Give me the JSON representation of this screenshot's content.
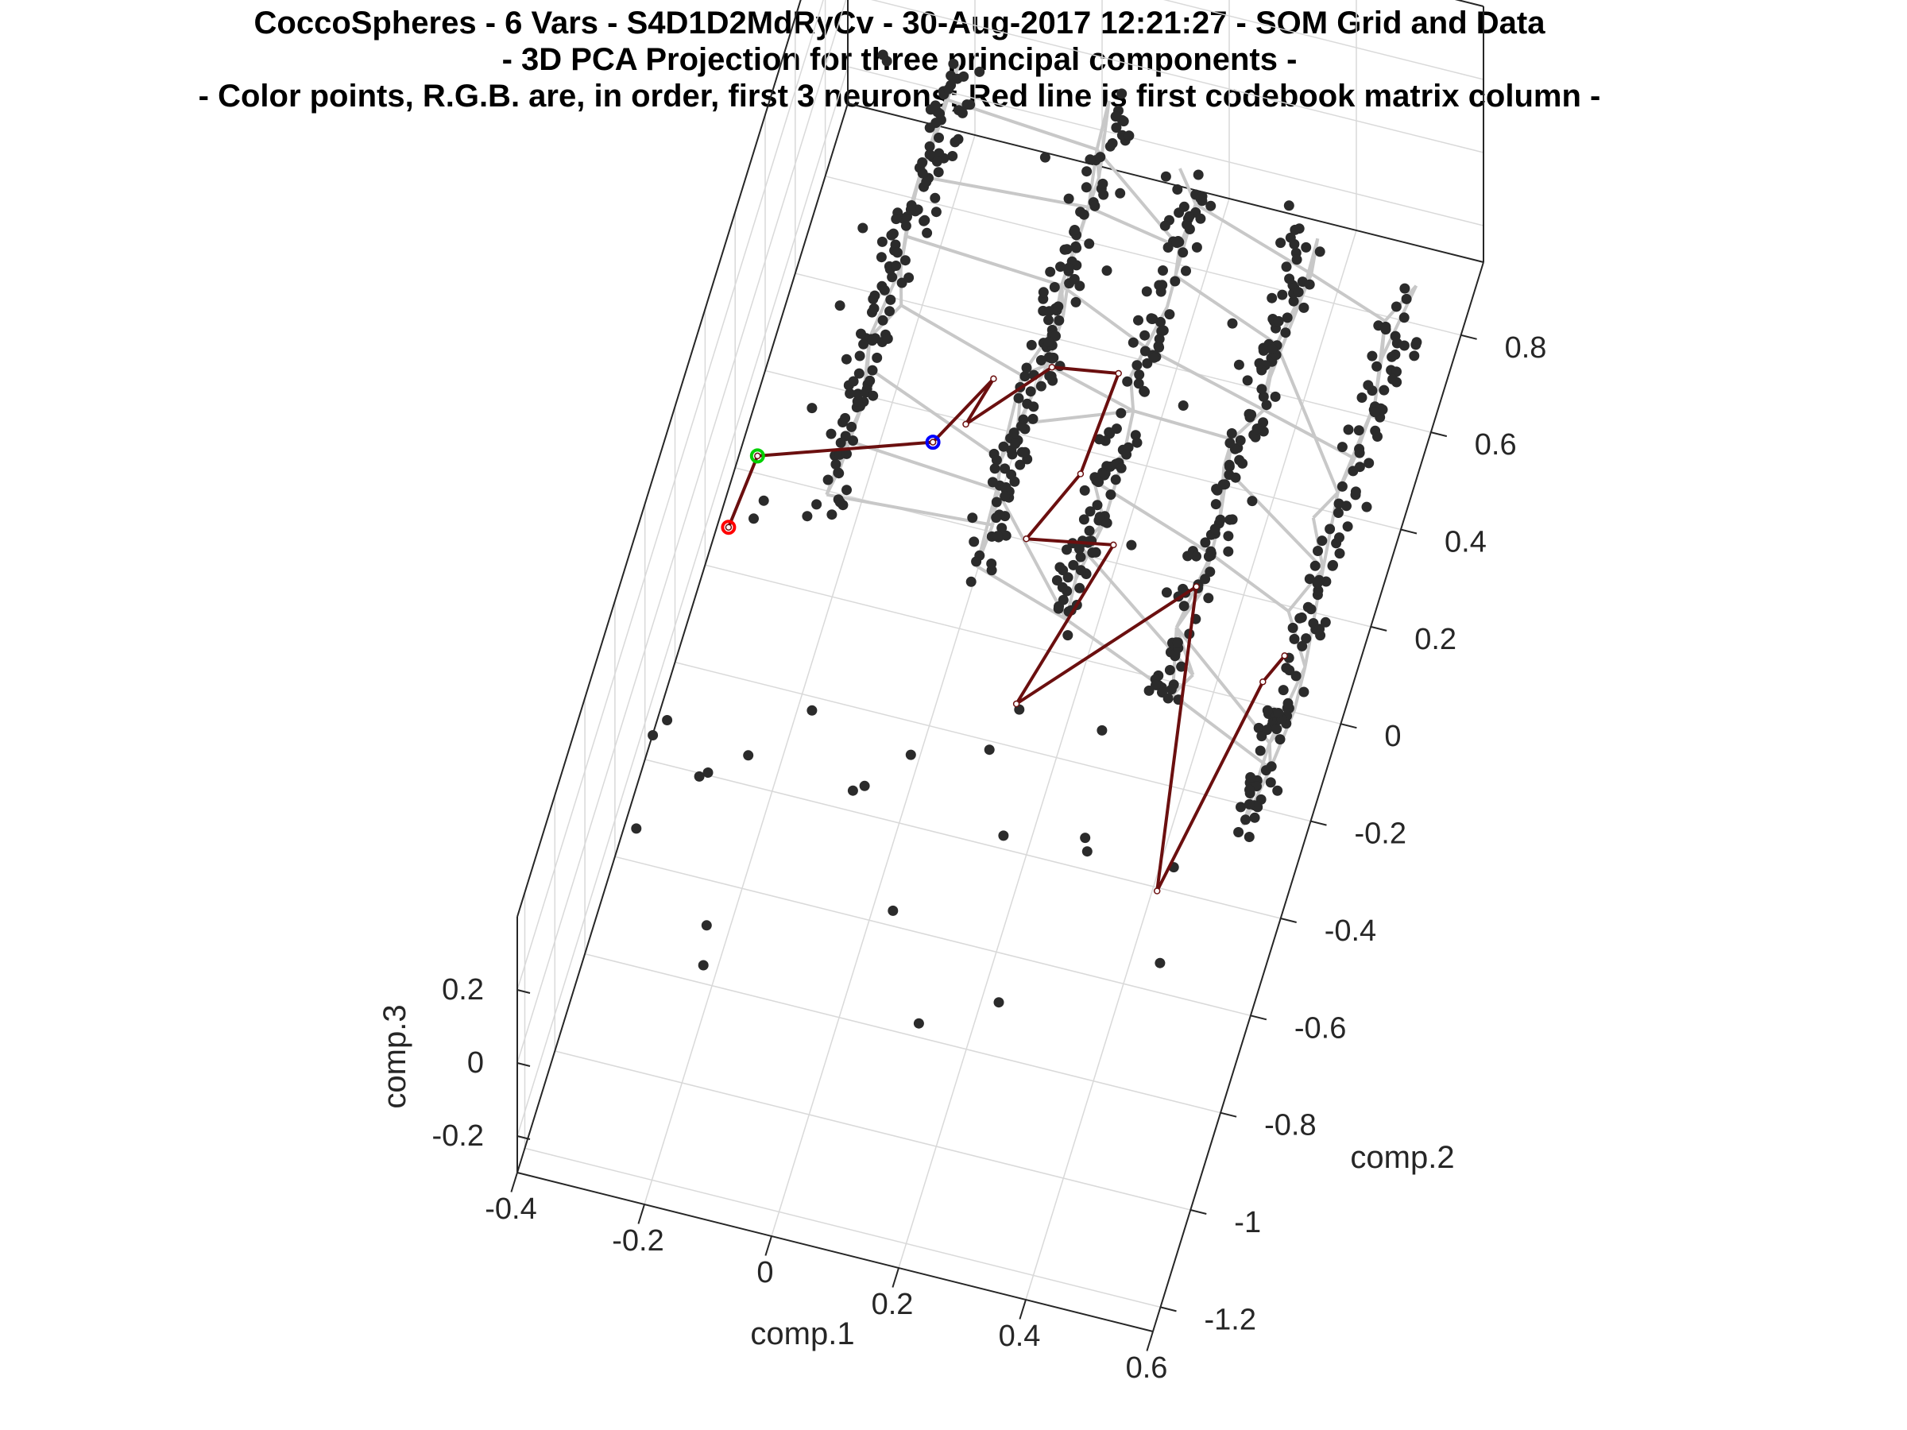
{
  "figure": {
    "title_lines": [
      "CoccoSpheres - 6 Vars - S4D1D2MdRyCv - 30-Aug-2017 12:21:27 - SOM Grid and Data",
      "- 3D PCA Projection for three principal components -",
      "- Color points, R.G.B. are, in order, first 3 neurons; Red line is first codebook matrix column -"
    ]
  },
  "chart_data": {
    "type": "scatter",
    "projection": "3d",
    "title": "CoccoSpheres - 6 Vars - S4D1D2MdRyCv - 30-Aug-2017 12:21:27 - SOM Grid and Data - 3D PCA Projection for three principal components - - Color points, R.G.B. are, in order, first 3 neurons; Red line is first codebook matrix column -",
    "xlabel": "comp.1",
    "ylabel": "comp.2",
    "zlabel": "comp.3",
    "xlim": [
      -0.4,
      0.6
    ],
    "ylim": [
      -1.25,
      0.95
    ],
    "zlim": [
      -0.3,
      0.4
    ],
    "xticks": [
      "-0.4",
      "-0.2",
      "0",
      "0.2",
      "0.4",
      "0.6"
    ],
    "yticks": [
      "-1.2",
      "-1",
      "-0.8",
      "-0.6",
      "-0.4",
      "-0.2",
      "0",
      "0.2",
      "0.4",
      "0.6",
      "0.8"
    ],
    "zticks": [
      "-0.2",
      "0",
      "0.2"
    ],
    "grid": true,
    "colors": {
      "data_points": "#2b2b2b",
      "som_grid": "#c8c8c8",
      "codebook_line": "#6b0f0f",
      "neuron_1": "#ff0000",
      "neuron_2": "#00d000",
      "neuron_3": "#0000ff"
    },
    "series": [
      {
        "kind": "som_grid",
        "clusters": [
          {
            "x": -0.2,
            "y_range": [
              -0.05,
              0.85
            ]
          },
          {
            "x": 0.05,
            "y_range": [
              -0.1,
              0.85
            ]
          },
          {
            "x": 0.2,
            "y_range": [
              -0.15,
              0.75
            ]
          },
          {
            "x": 0.38,
            "y_range": [
              -0.25,
              0.7
            ]
          },
          {
            "x": 0.56,
            "y_range": [
              -0.45,
              0.65
            ]
          }
        ]
      },
      {
        "kind": "codebook_column_1",
        "points": [
          {
            "x": -0.33,
            "y": -0.14,
            "z": 0.02
          },
          {
            "x": -0.32,
            "y": 0.01,
            "z": 0.02
          },
          {
            "x": -0.07,
            "y": 0.12,
            "z": 0.02
          },
          {
            "x": -0.01,
            "y": 0.27,
            "z": 0.02
          },
          {
            "x": -0.03,
            "y": 0.17,
            "z": 0.02
          },
          {
            "x": 0.07,
            "y": 0.32,
            "z": 0.02
          },
          {
            "x": 0.17,
            "y": 0.34,
            "z": 0.02
          },
          {
            "x": 0.16,
            "y": 0.13,
            "z": 0.02
          },
          {
            "x": 0.11,
            "y": -0.02,
            "z": 0.02
          },
          {
            "x": 0.24,
            "y": 0.01,
            "z": 0.02
          },
          {
            "x": 0.17,
            "y": -0.34,
            "z": 0.02
          },
          {
            "x": 0.38,
            "y": -0.03,
            "z": 0.02
          },
          {
            "x": 0.46,
            "y": -0.63,
            "z": 0.02
          },
          {
            "x": 0.52,
            "y": -0.18,
            "z": 0.02
          },
          {
            "x": 0.54,
            "y": -0.12,
            "z": 0.02
          }
        ]
      },
      {
        "kind": "first_three_neurons",
        "points": [
          {
            "name": "R",
            "x": -0.33,
            "y": -0.14,
            "z": 0.02
          },
          {
            "name": "G",
            "x": -0.32,
            "y": 0.01,
            "z": 0.02
          },
          {
            "name": "B",
            "x": -0.07,
            "y": 0.12,
            "z": 0.02
          }
        ]
      }
    ]
  }
}
